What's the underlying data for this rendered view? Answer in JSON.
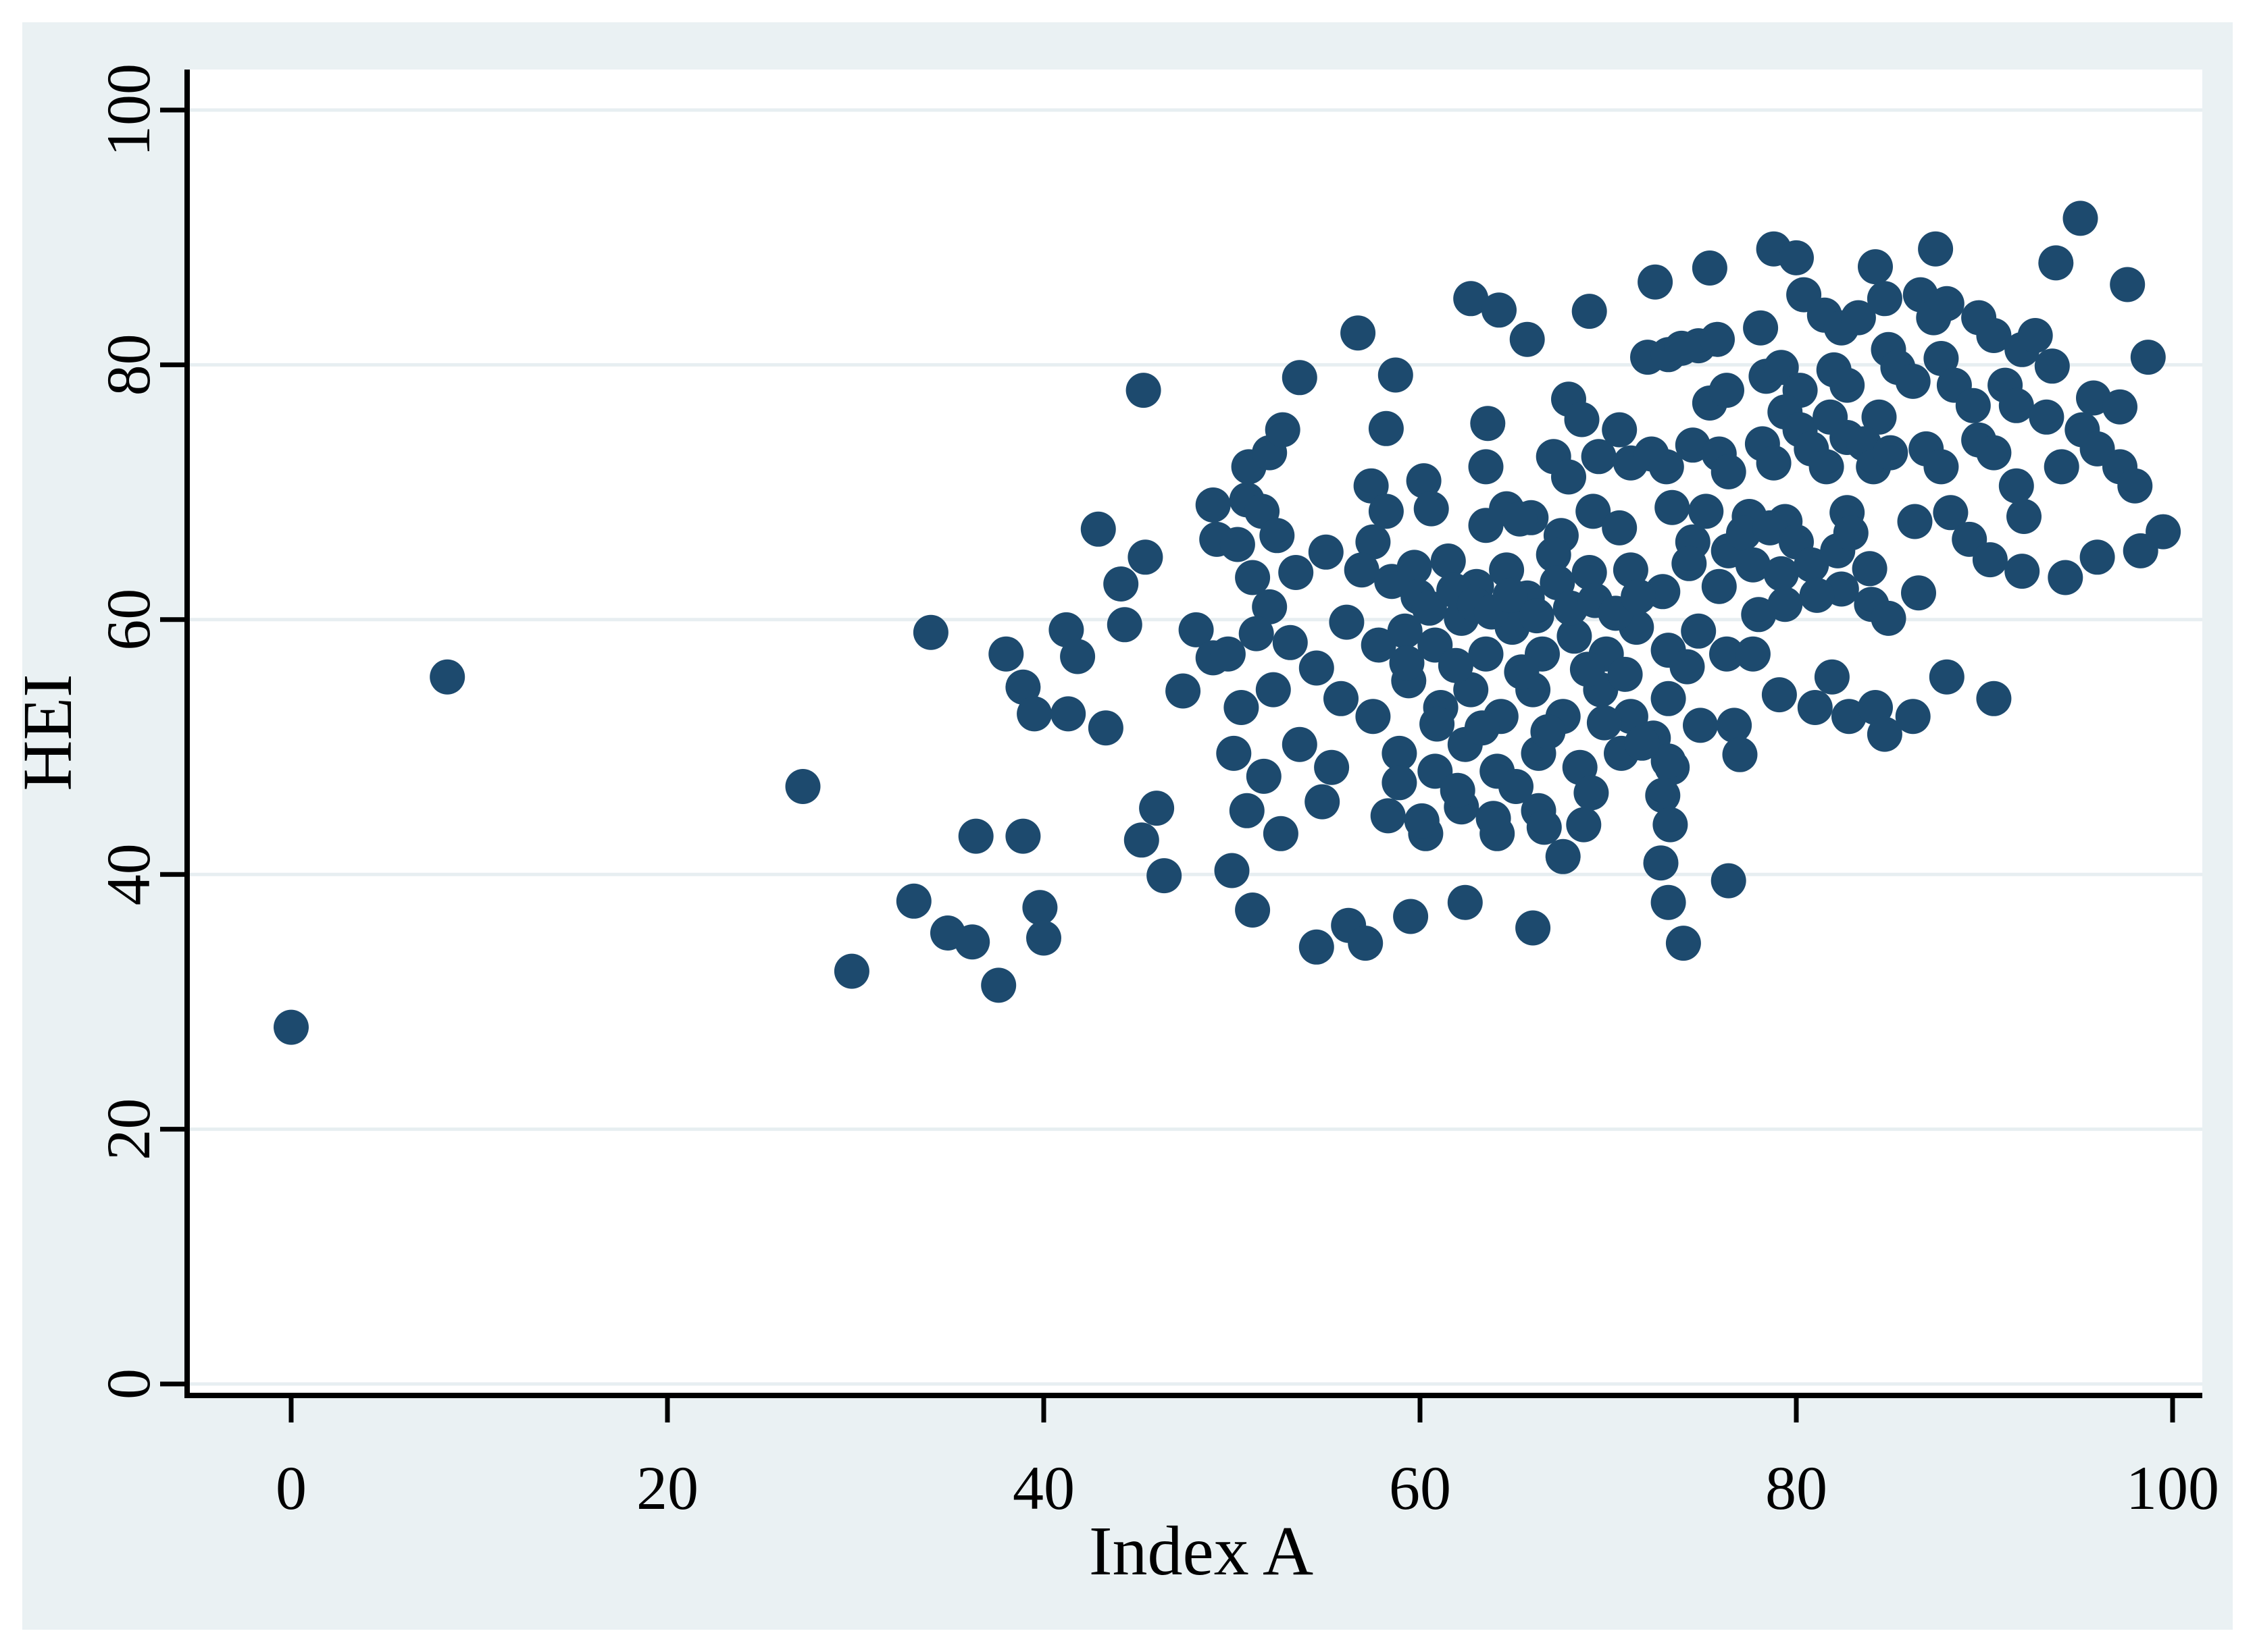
{
  "figure": {
    "background_color": "#eaf1f3",
    "plot_background_color": "#ffffff",
    "grid_color": "#e7eef1",
    "axis_color": "#000000",
    "marker_color": "#1d4a6e",
    "marker_radius": 26
  },
  "chart_data": {
    "type": "scatter",
    "title": "",
    "xlabel": "Index A",
    "ylabel": "HEI",
    "xlim": [
      -5.5,
      101.6
    ],
    "ylim": [
      -1,
      103.2
    ],
    "x_ticks": [
      0,
      20,
      40,
      60,
      80,
      100
    ],
    "y_ticks": [
      0,
      20,
      40,
      60,
      80,
      100
    ],
    "grid": "horizontal",
    "legend": "none",
    "points": [
      [
        0,
        28
      ],
      [
        8.3,
        55.5
      ],
      [
        27.2,
        46.9
      ],
      [
        29.8,
        32.4
      ],
      [
        33.1,
        37.9
      ],
      [
        34,
        59
      ],
      [
        34.9,
        35.4
      ],
      [
        36.2,
        34.7
      ],
      [
        36.4,
        43
      ],
      [
        37.6,
        31.3
      ],
      [
        38,
        57.3
      ],
      [
        38.9,
        54.7
      ],
      [
        38.9,
        43
      ],
      [
        39.5,
        52.6
      ],
      [
        39.8,
        37.4
      ],
      [
        40,
        35
      ],
      [
        41.2,
        59.2
      ],
      [
        41.3,
        52.6
      ],
      [
        41.8,
        57.1
      ],
      [
        42.9,
        67.1
      ],
      [
        43.3,
        51.5
      ],
      [
        44.1,
        62.8
      ],
      [
        44.3,
        59.6
      ],
      [
        45.2,
        42.7
      ],
      [
        45.3,
        78
      ],
      [
        45.4,
        64.9
      ],
      [
        46,
        45.2
      ],
      [
        46.4,
        39.9
      ],
      [
        47.4,
        54.4
      ],
      [
        48.1,
        59.2
      ],
      [
        49,
        57
      ],
      [
        49,
        69
      ],
      [
        50.8,
        69.4
      ],
      [
        50.9,
        72
      ],
      [
        51.6,
        68.5
      ],
      [
        52,
        73.1
      ],
      [
        52.7,
        74.9
      ],
      [
        53.6,
        79
      ],
      [
        56.7,
        82.5
      ],
      [
        57.4,
        70.5
      ],
      [
        58.2,
        75
      ],
      [
        58.2,
        68.5
      ],
      [
        58.7,
        79.2
      ],
      [
        60.2,
        70.9
      ],
      [
        60.6,
        68.7
      ],
      [
        62.7,
        85.2
      ],
      [
        63.5,
        72
      ],
      [
        63.6,
        75.4
      ],
      [
        64.2,
        84.3
      ],
      [
        64.6,
        68.7
      ],
      [
        65.7,
        82
      ],
      [
        65.9,
        68
      ],
      [
        67.1,
        72.8
      ],
      [
        67.9,
        77.3
      ],
      [
        67.9,
        71.2
      ],
      [
        68.6,
        75.7
      ],
      [
        69,
        84.2
      ],
      [
        69.2,
        68.5
      ],
      [
        69.5,
        72.8
      ],
      [
        70.6,
        74.9
      ],
      [
        71.2,
        72.3
      ],
      [
        72.1,
        80.6
      ],
      [
        72.3,
        73
      ],
      [
        72.5,
        86.5
      ],
      [
        73.1,
        72
      ],
      [
        73.2,
        80.8
      ],
      [
        73.4,
        68.8
      ],
      [
        73.9,
        81.3
      ],
      [
        74.5,
        73.7
      ],
      [
        74.8,
        81.5
      ],
      [
        75.2,
        68.5
      ],
      [
        75.4,
        87.6
      ],
      [
        75.4,
        77
      ],
      [
        75.8,
        82
      ],
      [
        75.9,
        73
      ],
      [
        76.3,
        78
      ],
      [
        76.4,
        71.6
      ],
      [
        49.2,
        66.3
      ],
      [
        50.3,
        65.9
      ],
      [
        52.4,
        66.6
      ],
      [
        57.5,
        66.1
      ],
      [
        63.5,
        67.4
      ],
      [
        65.3,
        67.9
      ],
      [
        67.5,
        66.6
      ],
      [
        70.6,
        67.2
      ],
      [
        74.5,
        66.1
      ],
      [
        76.4,
        65.4
      ],
      [
        51.1,
        63.3
      ],
      [
        52,
        61
      ],
      [
        53.4,
        63.7
      ],
      [
        55,
        65.3
      ],
      [
        56.9,
        63.9
      ],
      [
        58.5,
        63
      ],
      [
        59.7,
        64.1
      ],
      [
        61.5,
        64.6
      ],
      [
        63,
        62.6
      ],
      [
        64.6,
        63.9
      ],
      [
        65.7,
        61.7
      ],
      [
        67.1,
        65.1
      ],
      [
        69,
        63.7
      ],
      [
        71.2,
        63.9
      ],
      [
        72.9,
        62.2
      ],
      [
        74.3,
        64.4
      ],
      [
        75.9,
        62.6
      ],
      [
        49.8,
        57.3
      ],
      [
        51.3,
        58.9
      ],
      [
        53.1,
        58.2
      ],
      [
        54.5,
        56.2
      ],
      [
        56.1,
        59.8
      ],
      [
        57.8,
        58
      ],
      [
        59.2,
        59.1
      ],
      [
        60.8,
        58
      ],
      [
        62.2,
        60.1
      ],
      [
        63.5,
        57.3
      ],
      [
        64.9,
        59.4
      ],
      [
        66.5,
        57.3
      ],
      [
        68.2,
        58.7
      ],
      [
        69.9,
        57.3
      ],
      [
        71.5,
        59.4
      ],
      [
        73.2,
        57.6
      ],
      [
        74.8,
        59.1
      ],
      [
        76.3,
        57.3
      ],
      [
        50.5,
        53.1
      ],
      [
        52.2,
        54.5
      ],
      [
        55.8,
        53.8
      ],
      [
        57.5,
        52.4
      ],
      [
        59.4,
        55.2
      ],
      [
        61.1,
        53.1
      ],
      [
        62.7,
        54.5
      ],
      [
        64.3,
        52.4
      ],
      [
        66,
        54.5
      ],
      [
        67.6,
        52.4
      ],
      [
        69.6,
        54.5
      ],
      [
        71.2,
        52.4
      ],
      [
        73.2,
        53.8
      ],
      [
        74.9,
        51.7
      ],
      [
        50.1,
        49.5
      ],
      [
        51.7,
        47.7
      ],
      [
        53.6,
        50.2
      ],
      [
        55.3,
        48.4
      ],
      [
        58.9,
        49.5
      ],
      [
        60.8,
        48.1
      ],
      [
        62.4,
        50.2
      ],
      [
        64.1,
        48.1
      ],
      [
        66.3,
        49.5
      ],
      [
        68.5,
        48.4
      ],
      [
        70.7,
        49.5
      ],
      [
        73.4,
        48.4
      ],
      [
        50.8,
        45
      ],
      [
        52.6,
        43.2
      ],
      [
        54.8,
        45.7
      ],
      [
        58.3,
        44.6
      ],
      [
        60.3,
        43.2
      ],
      [
        62.2,
        45.3
      ],
      [
        64.1,
        43.2
      ],
      [
        66.3,
        45
      ],
      [
        67.6,
        41.4
      ],
      [
        68.7,
        43.9
      ],
      [
        72.4,
        50.7
      ],
      [
        73.2,
        48.9
      ],
      [
        72.9,
        46.2
      ],
      [
        73.3,
        43.9
      ],
      [
        72.8,
        40.9
      ],
      [
        73.2,
        37.8
      ],
      [
        50,
        40.3
      ],
      [
        51.1,
        37.2
      ],
      [
        54.5,
        34.3
      ],
      [
        56.2,
        36
      ],
      [
        57.1,
        34.6
      ],
      [
        59.5,
        36.7
      ],
      [
        62.4,
        37.8
      ],
      [
        66,
        35.8
      ],
      [
        74,
        34.6
      ],
      [
        76.4,
        39.5
      ],
      [
        59.9,
        61.8
      ],
      [
        60.5,
        60.9
      ],
      [
        61.8,
        62.3
      ],
      [
        62.9,
        61.2
      ],
      [
        63.8,
        60.6
      ],
      [
        64.8,
        61.9
      ],
      [
        66.2,
        60.3
      ],
      [
        67.3,
        62.9
      ],
      [
        68,
        60.9
      ],
      [
        69.3,
        61.5
      ],
      [
        70.4,
        60.5
      ],
      [
        71.6,
        61.8
      ],
      [
        59.3,
        56.6
      ],
      [
        61.9,
        56.4
      ],
      [
        65.4,
        55.9
      ],
      [
        68.9,
        56.1
      ],
      [
        70.9,
        55.7
      ],
      [
        74.2,
        56.3
      ],
      [
        60.9,
        51.8
      ],
      [
        63.3,
        51.5
      ],
      [
        66.8,
        51.2
      ],
      [
        69.8,
        51.9
      ],
      [
        71.8,
        50.3
      ],
      [
        58.9,
        47.2
      ],
      [
        62,
        46.6
      ],
      [
        65.1,
        46.9
      ],
      [
        69.1,
        46.4
      ],
      [
        60.1,
        44.2
      ],
      [
        63.9,
        44.4
      ],
      [
        66.6,
        43.7
      ],
      [
        95.1,
        91.5
      ],
      [
        78.8,
        89.1
      ],
      [
        80,
        88.4
      ],
      [
        87.4,
        89.1
      ],
      [
        93.8,
        88
      ],
      [
        97.6,
        86.3
      ],
      [
        80.4,
        85.5
      ],
      [
        84.2,
        87.7
      ],
      [
        84.7,
        85.2
      ],
      [
        86.6,
        85.5
      ],
      [
        87.3,
        83.7
      ],
      [
        88,
        84.8
      ],
      [
        81.5,
        83.9
      ],
      [
        82.4,
        82.9
      ],
      [
        83.3,
        83.7
      ],
      [
        78.1,
        82.9
      ],
      [
        89.7,
        83.7
      ],
      [
        90.5,
        82.3
      ],
      [
        92,
        81.2
      ],
      [
        92.7,
        82.3
      ],
      [
        78.4,
        79.1
      ],
      [
        79.2,
        79.8
      ],
      [
        80.2,
        78
      ],
      [
        82,
        79.6
      ],
      [
        82.7,
        78.4
      ],
      [
        84.9,
        81.2
      ],
      [
        85.4,
        79.8
      ],
      [
        86.2,
        78.7
      ],
      [
        87.7,
        80.5
      ],
      [
        88.4,
        78.4
      ],
      [
        89.4,
        76.8
      ],
      [
        91.1,
        78.4
      ],
      [
        91.7,
        76.8
      ],
      [
        79.4,
        76.3
      ],
      [
        80.2,
        74.9
      ],
      [
        81.8,
        75.9
      ],
      [
        82.7,
        74.3
      ],
      [
        84.4,
        75.9
      ],
      [
        93.6,
        79.9
      ],
      [
        98.7,
        80.6
      ],
      [
        93.3,
        75.9
      ],
      [
        95.8,
        77.4
      ],
      [
        97.2,
        76.7
      ],
      [
        95.2,
        74.9
      ],
      [
        96,
        73.4
      ],
      [
        94.1,
        72
      ],
      [
        97.2,
        72
      ],
      [
        98,
        70.5
      ],
      [
        78.2,
        73.8
      ],
      [
        78.8,
        72.3
      ],
      [
        80.8,
        73.4
      ],
      [
        81.6,
        72
      ],
      [
        83.6,
        73.8
      ],
      [
        84.1,
        72
      ],
      [
        85,
        73.1
      ],
      [
        86.9,
        73.4
      ],
      [
        87.7,
        72
      ],
      [
        89.7,
        74.1
      ],
      [
        90.5,
        73.1
      ],
      [
        91.7,
        70.5
      ],
      [
        77.5,
        68.1
      ],
      [
        79.4,
        67.7
      ],
      [
        82.7,
        68.4
      ],
      [
        86.3,
        67.7
      ],
      [
        88.2,
        68.4
      ],
      [
        92.1,
        68.1
      ],
      [
        77.2,
        66.8
      ],
      [
        78.6,
        67.2
      ],
      [
        80,
        66.1
      ],
      [
        77.7,
        64.3
      ],
      [
        79.2,
        63.6
      ],
      [
        80.8,
        64.3
      ],
      [
        82.2,
        65.4
      ],
      [
        82.9,
        66.8
      ],
      [
        83.9,
        64
      ],
      [
        82.4,
        62.4
      ],
      [
        81.1,
        61.9
      ],
      [
        79.4,
        61.2
      ],
      [
        78,
        60.4
      ],
      [
        84,
        61.2
      ],
      [
        84.9,
        60.1
      ],
      [
        89.2,
        66.3
      ],
      [
        90.3,
        64.7
      ],
      [
        92,
        63.8
      ],
      [
        94.3,
        63.3
      ],
      [
        96,
        64.9
      ],
      [
        98.3,
        65.4
      ],
      [
        99.5,
        66.9
      ],
      [
        86.5,
        62.1
      ],
      [
        77.7,
        57.3
      ],
      [
        79.1,
        54.1
      ],
      [
        81.9,
        55.5
      ],
      [
        81,
        53.1
      ],
      [
        82.8,
        52.4
      ],
      [
        84.2,
        53.1
      ],
      [
        84.7,
        51
      ],
      [
        86.2,
        52.4
      ],
      [
        88,
        55.5
      ],
      [
        90.5,
        53.8
      ],
      [
        76.7,
        51.7
      ],
      [
        77,
        49.4
      ]
    ]
  }
}
